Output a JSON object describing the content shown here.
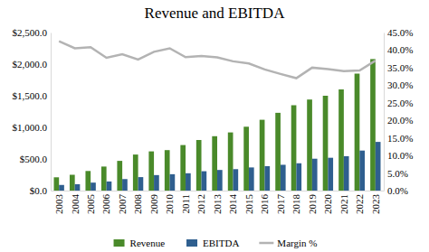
{
  "chart_data": {
    "type": "bar",
    "title": "Revenue and EBITDA",
    "categories": [
      "2003",
      "2004",
      "2005",
      "2006",
      "2007",
      "2008",
      "2009",
      "2010",
      "2011",
      "2012",
      "2013",
      "2014",
      "2015",
      "2016",
      "2017",
      "2018",
      "2019",
      "2020",
      "2021",
      "2022",
      "2023"
    ],
    "series": [
      {
        "name": "Revenue",
        "type": "bar",
        "color": "#4a8a2a",
        "values": [
          210,
          250,
          310,
          380,
          470,
          570,
          620,
          640,
          720,
          800,
          860,
          920,
          1010,
          1120,
          1230,
          1350,
          1440,
          1500,
          1600,
          1850,
          2080
        ]
      },
      {
        "name": "EBITDA",
        "type": "bar",
        "color": "#2f5f8f",
        "values": [
          89,
          101,
          126,
          144,
          182,
          213,
          245,
          259,
          274,
          306,
          326,
          339,
          366,
          386,
          408,
          432,
          504,
          519,
          544,
          633,
          770
        ]
      },
      {
        "name": "Margin %",
        "type": "line",
        "axis": "y2",
        "color": "#b3b3b3",
        "values": [
          42.5,
          40.5,
          40.8,
          37.8,
          38.8,
          37.3,
          39.5,
          40.5,
          38.0,
          38.3,
          37.9,
          36.8,
          36.2,
          34.5,
          33.2,
          32.0,
          35.0,
          34.6,
          34.0,
          34.2,
          37.0
        ]
      }
    ],
    "ylim": [
      0,
      2500
    ],
    "yticks": [
      {
        "value": 0,
        "label": "$0.0"
      },
      {
        "value": 500,
        "label": "$500.0"
      },
      {
        "value": 1000,
        "label": "$1,000.0"
      },
      {
        "value": 1500,
        "label": "$1,500.0"
      },
      {
        "value": 2000,
        "label": "$2,000.0"
      },
      {
        "value": 2500,
        "label": "$2,500.0"
      }
    ],
    "y2lim": [
      0,
      45
    ],
    "y2ticks": [
      {
        "value": 0,
        "label": "0.0%"
      },
      {
        "value": 5,
        "label": "5.0%"
      },
      {
        "value": 10,
        "label": "10.0%"
      },
      {
        "value": 15,
        "label": "15.0%"
      },
      {
        "value": 20,
        "label": "20.0%"
      },
      {
        "value": 25,
        "label": "25.0%"
      },
      {
        "value": 30,
        "label": "30.0%"
      },
      {
        "value": 35,
        "label": "35.0%"
      },
      {
        "value": 40,
        "label": "40.0%"
      },
      {
        "value": 45,
        "label": "45.0%"
      }
    ],
    "grid": false,
    "legend": "bottom"
  }
}
